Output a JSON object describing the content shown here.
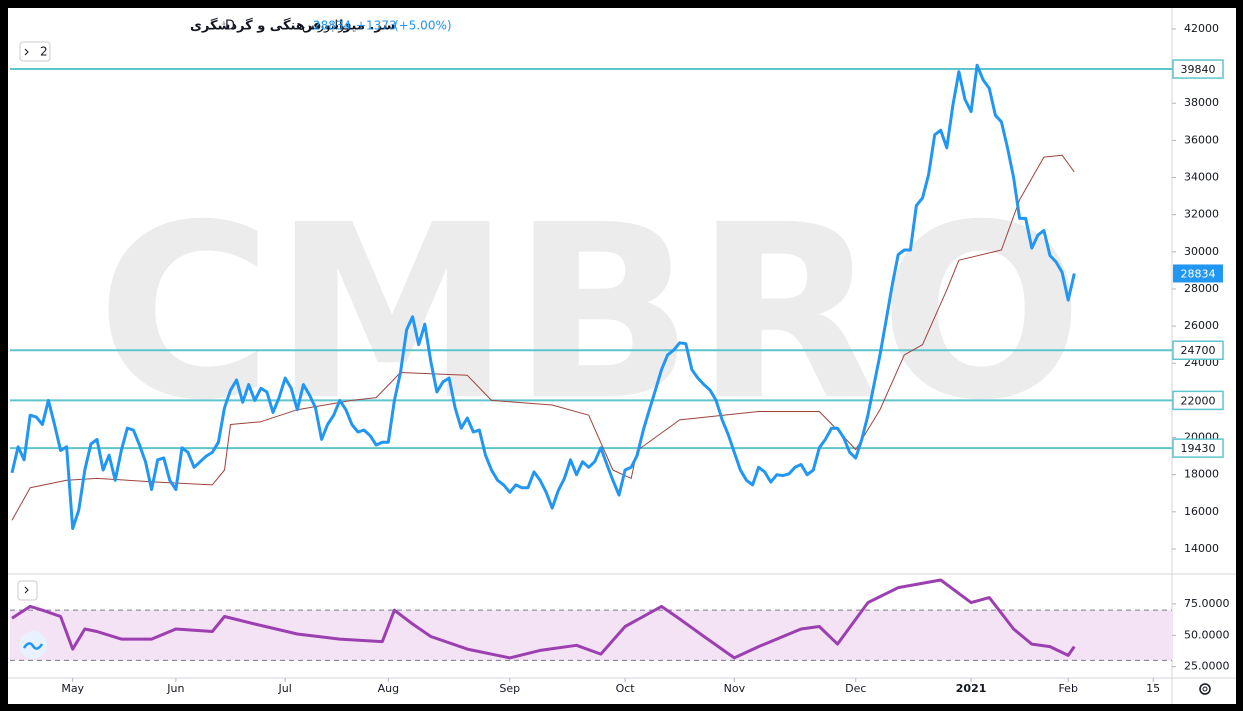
{
  "toolbar": {
    "badge": "2"
  },
  "chart_data": [
    {
      "type": "line",
      "title": "سر. میراث فرهنگی و گردشگری",
      "interval": "D",
      "exchange": "فرابورس",
      "last_price": 28834,
      "price_change": "+1373",
      "percent_change": "(+5.00%)",
      "watermark": "CMBRO",
      "ylim": [
        12760,
        43020
      ],
      "yticks": [
        14000,
        16000,
        18000,
        20000,
        22000,
        24000,
        26000,
        28000,
        30000,
        32000,
        34000,
        36000,
        38000,
        40000,
        42000
      ],
      "xlim": [
        -0.33,
        191.1
      ],
      "xticks": [
        {
          "value": 10,
          "label": "May"
        },
        {
          "value": 27,
          "label": "Jun"
        },
        {
          "value": 45,
          "label": "Jul"
        },
        {
          "value": 62,
          "label": "Aug"
        },
        {
          "value": 82,
          "label": "Sep"
        },
        {
          "value": 101,
          "label": "Oct"
        },
        {
          "value": 119,
          "label": "Nov"
        },
        {
          "value": 139,
          "label": "Dec"
        },
        {
          "value": 158,
          "label": "2021"
        },
        {
          "value": 174,
          "label": "Feb"
        },
        {
          "value": 188,
          "label": "15"
        }
      ],
      "grid": false,
      "hlines": [
        39840,
        24700,
        22000,
        19430
      ],
      "hline_color": "#5fc4cc",
      "series": [
        {
          "color": "#2196f3",
          "values": [
            18100,
            19500,
            18800,
            21200,
            21100,
            20700,
            22000,
            20700,
            19300,
            19500,
            15100,
            16100,
            18250,
            19650,
            19900,
            18250,
            19050,
            17700,
            19300,
            20500,
            20400,
            19600,
            18700,
            17200,
            18800,
            18900,
            17700,
            17200,
            19450,
            19200,
            18400,
            18700,
            19000,
            19200,
            19750,
            21600,
            22550,
            23100,
            21900,
            22850,
            22000,
            22650,
            22450,
            21350,
            22150,
            23200,
            22650,
            21500,
            22850,
            22300,
            21600,
            19900,
            20700,
            21200,
            22000,
            21500,
            20700,
            20300,
            20400,
            20100,
            19600,
            19750,
            19750,
            22000,
            23500,
            25800,
            26500,
            25000,
            26100,
            24100,
            22450,
            23000,
            23200,
            21600,
            20500,
            21050,
            20300,
            20400,
            19050,
            18250,
            17700,
            17450,
            17050,
            17450,
            17300,
            17300,
            18150,
            17700,
            17050,
            16200,
            17150,
            17800,
            18800,
            18000,
            18700,
            18400,
            18700,
            19450,
            18550,
            17700,
            16900,
            18250,
            18400,
            19050,
            20400,
            21500,
            22550,
            23650,
            24450,
            24700,
            25100,
            25050,
            23650,
            23200,
            22850,
            22550,
            22000,
            20950,
            20150,
            19200,
            18250,
            17700,
            17450,
            18400,
            18150,
            17600,
            18000,
            17950,
            18050,
            18400,
            18550,
            18000,
            18250,
            19450,
            19900,
            20500,
            20500,
            20000,
            19200,
            18900,
            19900,
            21200,
            22850,
            24450,
            26300,
            28200,
            29850,
            30100,
            30100,
            32500,
            32900,
            34150,
            36300,
            36550,
            35600,
            37900,
            39700,
            38200,
            37550,
            40050,
            39250,
            38800,
            37350,
            37000,
            35600,
            34000,
            31800,
            31800,
            30200,
            30900,
            31150,
            29800,
            29450,
            28900,
            27400,
            28834
          ]
        },
        {
          "color": "#a0423c",
          "x": [
            0,
            3,
            9,
            14,
            24,
            33,
            35,
            36,
            41,
            47,
            56,
            60,
            64,
            75,
            79,
            89,
            95,
            99,
            102,
            103,
            110,
            123,
            133,
            136,
            139,
            143,
            147,
            150,
            154,
            156,
            163,
            166,
            170,
            173,
            175
          ],
          "values": [
            15550,
            17300,
            17700,
            17800,
            17600,
            17450,
            18250,
            20700,
            20850,
            21500,
            22000,
            22150,
            23500,
            23350,
            22000,
            21750,
            21200,
            18250,
            17800,
            19300,
            20950,
            21400,
            21400,
            20400,
            19350,
            21500,
            24450,
            25000,
            27950,
            29550,
            30100,
            32800,
            35100,
            35200,
            34300
          ]
        }
      ]
    },
    {
      "type": "line",
      "ylim": [
        16,
        98
      ],
      "yticks": [
        {
          "value": 75,
          "label": "75.0000"
        },
        {
          "value": 50,
          "label": "50.0000"
        },
        {
          "value": 25,
          "label": "25.0000"
        }
      ],
      "hlines": [
        70,
        30
      ],
      "band_color": "#f3e3f5",
      "series": [
        {
          "color": "#9c3fb0",
          "x": [
            0,
            3,
            5,
            8,
            10,
            12,
            14,
            18,
            23,
            27,
            33,
            35,
            40,
            47,
            54,
            61,
            63,
            66,
            69,
            75,
            82,
            87,
            93,
            97,
            101,
            107,
            110,
            114,
            119,
            123,
            130,
            133,
            136,
            141,
            146,
            153,
            158,
            161,
            165,
            168,
            171,
            174,
            175
          ],
          "values": [
            63.5,
            73,
            70,
            65,
            39,
            55,
            53,
            47,
            47,
            55,
            53,
            65,
            59,
            51,
            47,
            45,
            70,
            59,
            49,
            39,
            32,
            38,
            42,
            35,
            57,
            73,
            63,
            49,
            32,
            41,
            55,
            57,
            43,
            76,
            88,
            94,
            76,
            80,
            55,
            43,
            41,
            34,
            41
          ]
        }
      ]
    }
  ]
}
